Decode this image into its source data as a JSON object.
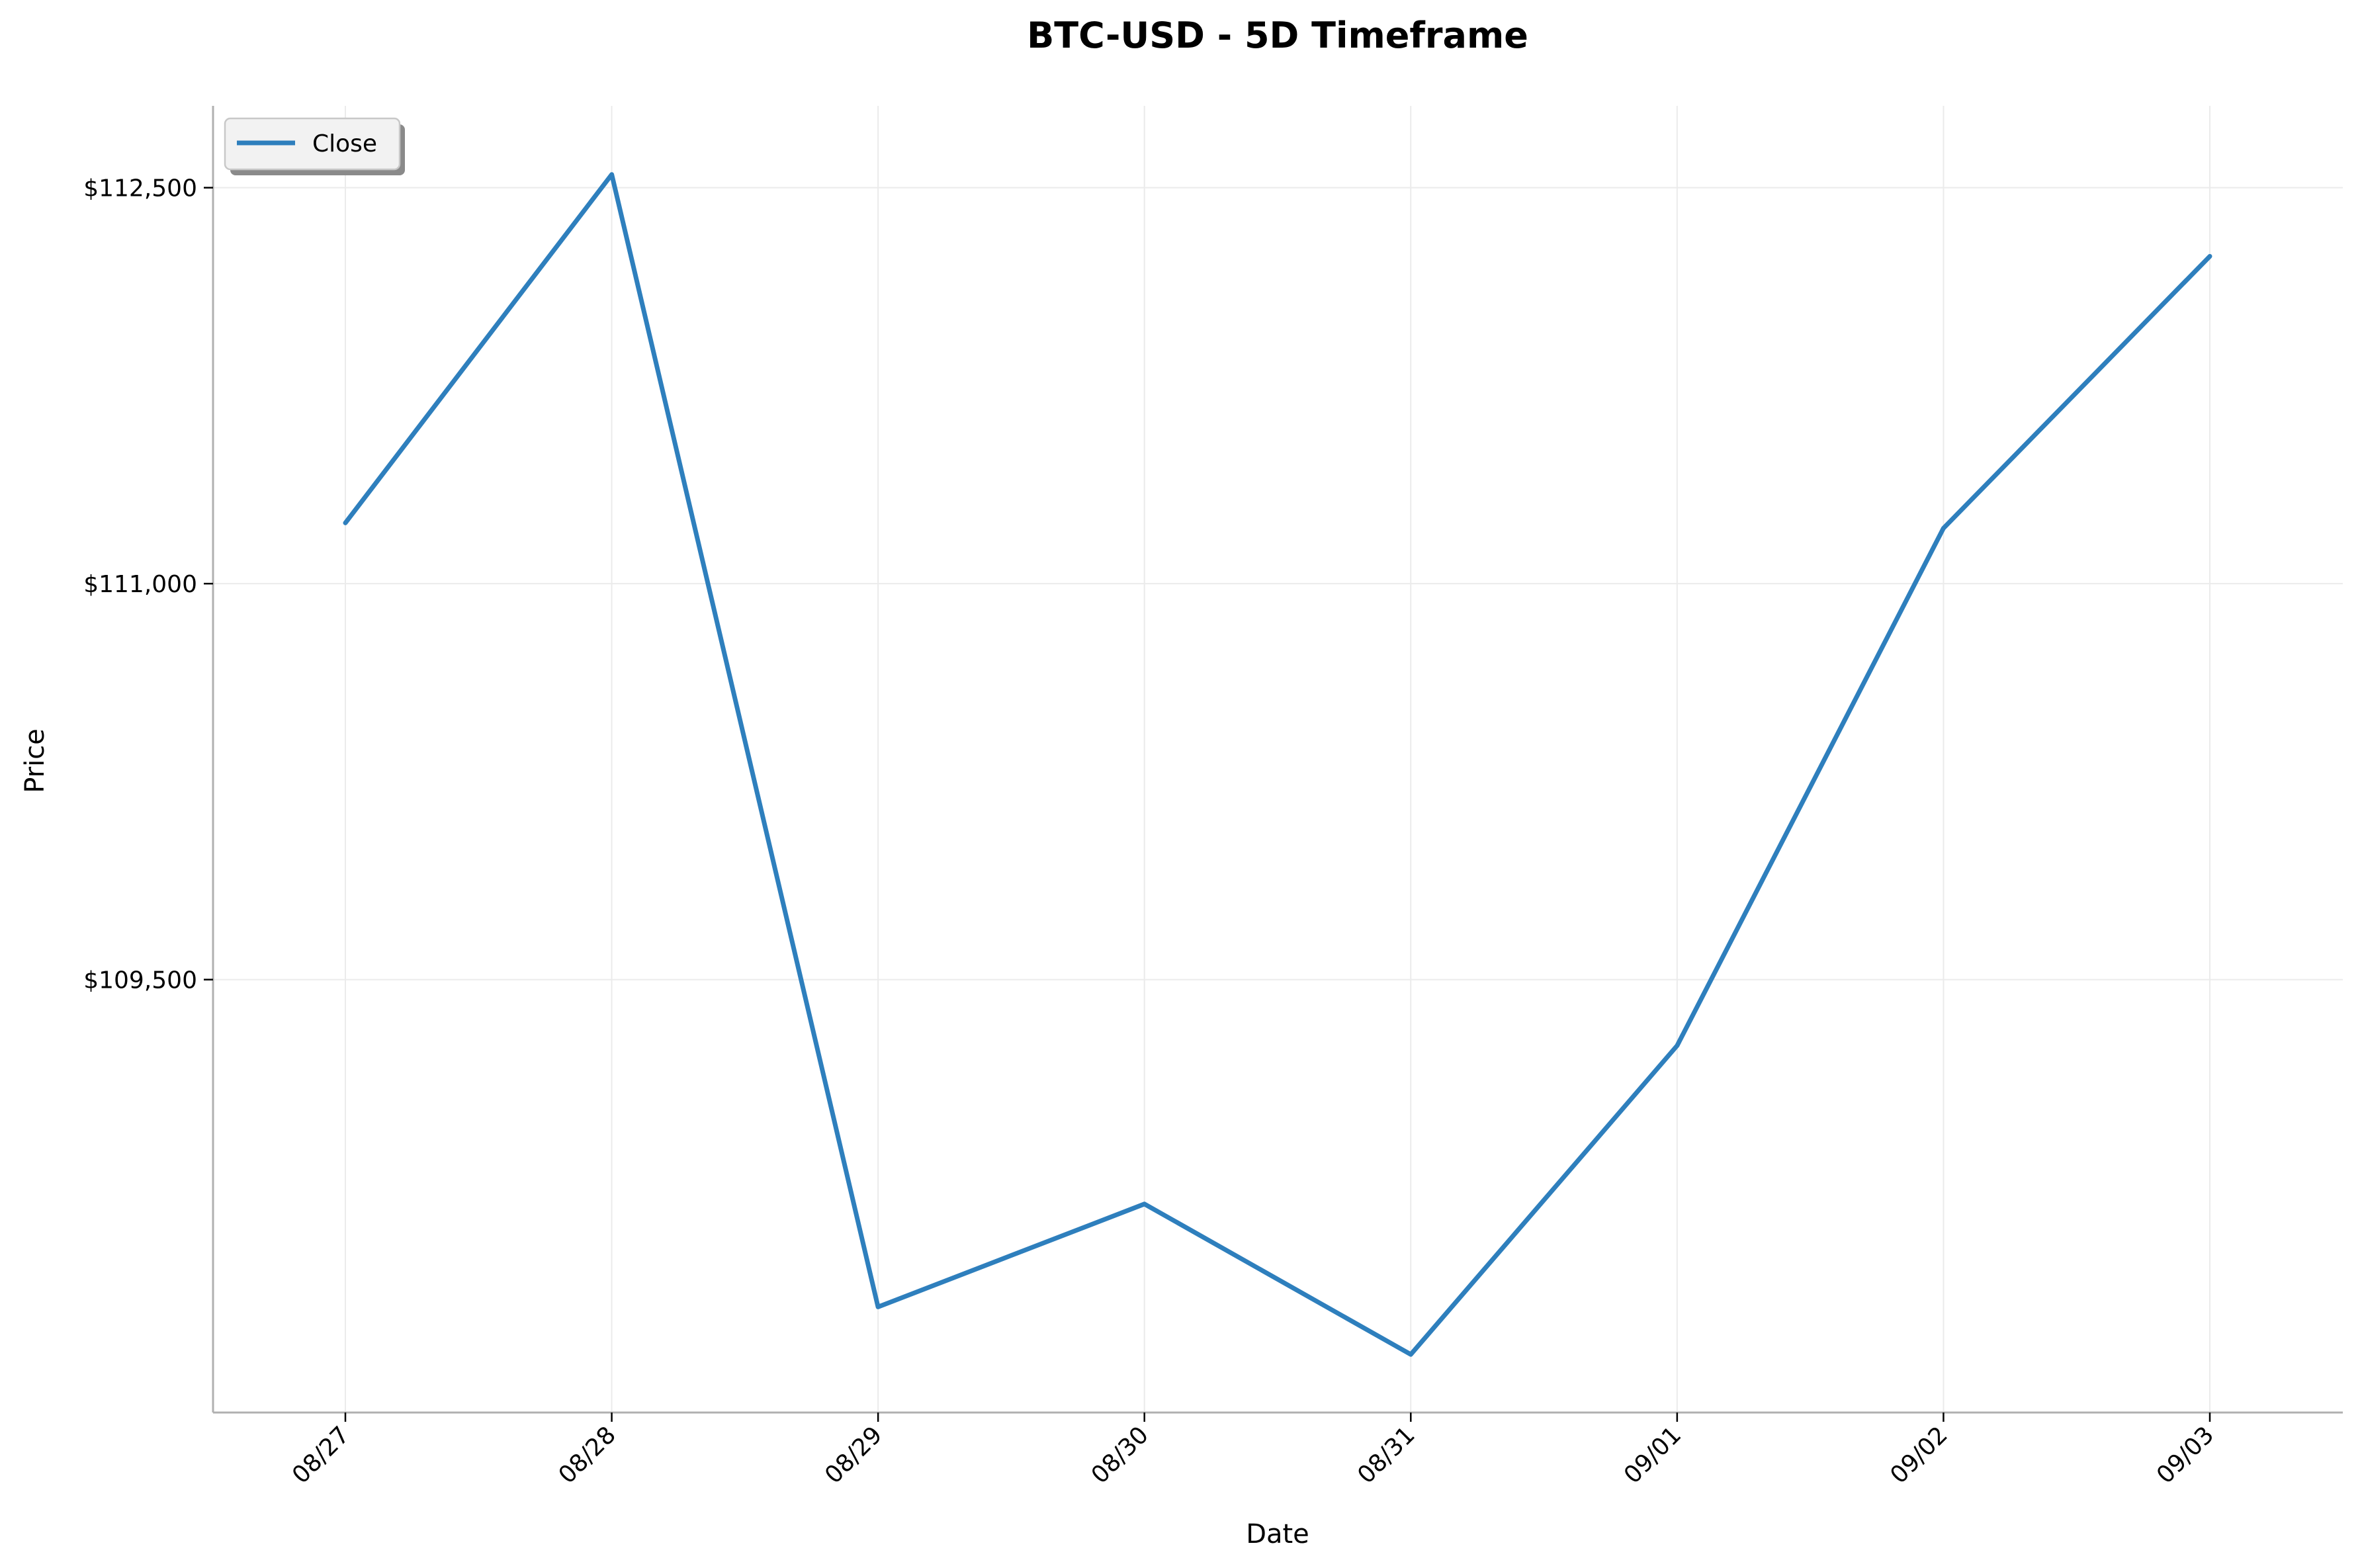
{
  "chart_data": {
    "type": "line",
    "title": "BTC-USD - 5D Timeframe",
    "xlabel": "Date",
    "ylabel": "Price",
    "categories": [
      "08/27",
      "08/28",
      "08/29",
      "08/30",
      "08/31",
      "09/01",
      "09/02",
      "09/03"
    ],
    "series": [
      {
        "name": "Close",
        "color": "#2e7fbd",
        "values": [
          111230,
          112550,
          108260,
          108650,
          108080,
          109250,
          111210,
          112240
        ]
      }
    ],
    "y_ticks": [
      {
        "value": 109500,
        "label": "$109,500"
      },
      {
        "value": 111000,
        "label": "$111,000"
      },
      {
        "value": 112500,
        "label": "$112,500"
      }
    ],
    "ylim": [
      107860,
      112810
    ],
    "grid": true,
    "legend_position": "top-left"
  }
}
